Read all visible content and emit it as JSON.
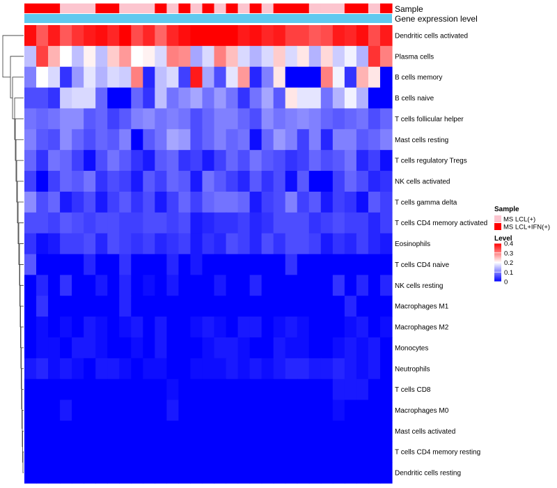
{
  "chart_data": {
    "type": "heatmap",
    "title": "",
    "annotation_tracks": [
      "Sample",
      "Gene expression level"
    ],
    "samples": {
      "groups": [
        "MS LCL(+)",
        "MS LCL+IFN(+)"
      ],
      "group_colors": {
        "MS LCL(+)": "#fcc5cf",
        "MS LCL+IFN(+)": "#ff0000"
      },
      "assignment": [
        1,
        1,
        1,
        0,
        0,
        0,
        1,
        1,
        0,
        0,
        0,
        1,
        0,
        1,
        0,
        1,
        0,
        1,
        0,
        1,
        0,
        1,
        1,
        1,
        0,
        0,
        0,
        1,
        1,
        0,
        1
      ]
    },
    "expression_track_color": "#5fc9ef",
    "rows": [
      "Dendritic cells activated",
      "Plasma cells",
      "B cells memory",
      "B cells naive",
      "T cells follicular helper",
      "Mast cells resting",
      "T cells regulatory  Tregs",
      "NK cells activated",
      "T cells gamma delta",
      "T cells CD4 memory activated",
      "Eosinophils",
      "T cells CD4 naive",
      "NK cells resting",
      "Macrophages M1",
      "Macrophages M2",
      "Monocytes",
      "Neutrophils",
      "T cells CD8",
      "Macrophages M0",
      "Mast cells activated",
      "T cells CD4 memory resting",
      "Dendritic cells resting"
    ],
    "values": [
      [
        0.39,
        0.33,
        0.38,
        0.33,
        0.36,
        0.38,
        0.39,
        0.37,
        0.4,
        0.34,
        0.37,
        0.32,
        0.37,
        0.39,
        0.4,
        0.4,
        0.4,
        0.4,
        0.38,
        0.39,
        0.37,
        0.38,
        0.35,
        0.35,
        0.33,
        0.34,
        0.38,
        0.37,
        0.39,
        0.34,
        0.38
      ],
      [
        0.15,
        0.35,
        0.26,
        0.2,
        0.15,
        0.21,
        0.15,
        0.24,
        0.28,
        0.2,
        0.21,
        0.17,
        0.3,
        0.29,
        0.13,
        0.17,
        0.3,
        0.25,
        0.17,
        0.14,
        0.17,
        0.24,
        0.17,
        0.22,
        0.14,
        0.23,
        0.16,
        0.19,
        0.14,
        0.36,
        0.3
      ],
      [
        0.1,
        0.2,
        0.17,
        0.04,
        0.12,
        0.18,
        0.14,
        0.17,
        0.16,
        0.3,
        0.03,
        0.15,
        0.17,
        0.05,
        0.38,
        0.13,
        0.06,
        0.18,
        0.28,
        0.03,
        0.1,
        0.22,
        0.0,
        0.0,
        0.0,
        0.3,
        0.19,
        0.04,
        0.26,
        0.22,
        0.0
      ],
      [
        0.06,
        0.06,
        0.04,
        0.16,
        0.17,
        0.17,
        0.08,
        0.0,
        0.0,
        0.08,
        0.04,
        0.15,
        0.09,
        0.11,
        0.13,
        0.09,
        0.12,
        0.09,
        0.04,
        0.09,
        0.13,
        0.07,
        0.22,
        0.18,
        0.18,
        0.09,
        0.14,
        0.19,
        0.14,
        0.0,
        0.0
      ],
      [
        0.09,
        0.08,
        0.09,
        0.11,
        0.11,
        0.07,
        0.08,
        0.05,
        0.07,
        0.1,
        0.11,
        0.09,
        0.1,
        0.09,
        0.06,
        0.08,
        0.1,
        0.1,
        0.08,
        0.06,
        0.11,
        0.09,
        0.1,
        0.11,
        0.1,
        0.08,
        0.07,
        0.08,
        0.09,
        0.06,
        0.08
      ],
      [
        0.1,
        0.07,
        0.06,
        0.11,
        0.08,
        0.06,
        0.08,
        0.07,
        0.1,
        0.0,
        0.07,
        0.09,
        0.13,
        0.12,
        0.06,
        0.08,
        0.1,
        0.08,
        0.09,
        0.01,
        0.08,
        0.12,
        0.1,
        0.05,
        0.1,
        0.03,
        0.1,
        0.1,
        0.07,
        0.08,
        0.1
      ],
      [
        0.08,
        0.04,
        0.09,
        0.08,
        0.05,
        0.01,
        0.06,
        0.09,
        0.07,
        0.04,
        0.02,
        0.07,
        0.08,
        0.04,
        0.05,
        0.02,
        0.05,
        0.08,
        0.06,
        0.09,
        0.07,
        0.06,
        0.04,
        0.05,
        0.08,
        0.06,
        0.07,
        0.09,
        0.03,
        0.05,
        0.01
      ],
      [
        0.05,
        0.0,
        0.05,
        0.08,
        0.07,
        0.09,
        0.04,
        0.06,
        0.05,
        0.02,
        0.07,
        0.05,
        0.08,
        0.07,
        0.02,
        0.09,
        0.07,
        0.05,
        0.03,
        0.07,
        0.04,
        0.06,
        0.01,
        0.07,
        0.0,
        0.0,
        0.05,
        0.08,
        0.06,
        0.03,
        0.04
      ],
      [
        0.11,
        0.06,
        0.08,
        0.02,
        0.04,
        0.06,
        0.02,
        0.05,
        0.07,
        0.04,
        0.06,
        0.02,
        0.05,
        0.08,
        0.05,
        0.08,
        0.09,
        0.09,
        0.08,
        0.02,
        0.05,
        0.06,
        0.1,
        0.05,
        0.07,
        0.02,
        0.05,
        0.04,
        0.01,
        0.07,
        0.05
      ],
      [
        0.06,
        0.06,
        0.05,
        0.07,
        0.06,
        0.05,
        0.06,
        0.06,
        0.05,
        0.05,
        0.06,
        0.06,
        0.05,
        0.06,
        0.02,
        0.03,
        0.04,
        0.04,
        0.05,
        0.03,
        0.04,
        0.06,
        0.06,
        0.06,
        0.04,
        0.05,
        0.06,
        0.05,
        0.05,
        0.03,
        0.05
      ],
      [
        0.04,
        0.01,
        0.02,
        0.05,
        0.05,
        0.06,
        0.03,
        0.06,
        0.05,
        0.04,
        0.05,
        0.03,
        0.04,
        0.05,
        0.02,
        0.04,
        0.03,
        0.06,
        0.05,
        0.03,
        0.06,
        0.04,
        0.06,
        0.06,
        0.05,
        0.02,
        0.04,
        0.03,
        0.05,
        0.03,
        0.02
      ],
      [
        0.07,
        0.0,
        0.0,
        0.0,
        0.0,
        0.03,
        0.0,
        0.0,
        0.04,
        0.0,
        0.0,
        0.0,
        0.03,
        0.0,
        0.02,
        0.0,
        0.0,
        0.0,
        0.0,
        0.0,
        0.0,
        0.0,
        0.04,
        0.0,
        0.0,
        0.0,
        0.0,
        0.0,
        0.0,
        0.0,
        0.0
      ],
      [
        0.0,
        0.03,
        0.0,
        0.04,
        0.0,
        0.0,
        0.02,
        0.0,
        0.03,
        0.0,
        0.01,
        0.0,
        0.02,
        0.0,
        0.0,
        0.0,
        0.02,
        0.0,
        0.0,
        0.03,
        0.0,
        0.0,
        0.0,
        0.0,
        0.0,
        0.0,
        0.04,
        0.0,
        0.03,
        0.0,
        0.03
      ],
      [
        0.0,
        0.04,
        0.0,
        0.0,
        0.0,
        0.0,
        0.0,
        0.0,
        0.03,
        0.0,
        0.0,
        0.0,
        0.0,
        0.0,
        0.0,
        0.0,
        0.0,
        0.0,
        0.0,
        0.0,
        0.0,
        0.0,
        0.0,
        0.0,
        0.0,
        0.0,
        0.0,
        0.03,
        0.0,
        0.0,
        0.0
      ],
      [
        0.0,
        0.01,
        0.0,
        0.01,
        0.0,
        0.02,
        0.01,
        0.0,
        0.01,
        0.02,
        0.0,
        0.02,
        0.0,
        0.0,
        0.01,
        0.02,
        0.01,
        0.0,
        0.02,
        0.02,
        0.0,
        0.01,
        0.02,
        0.01,
        0.0,
        0.0,
        0.0,
        0.01,
        0.02,
        0.0,
        0.01
      ],
      [
        0.0,
        0.01,
        0.01,
        0.0,
        0.02,
        0.02,
        0.01,
        0.0,
        0.0,
        0.01,
        0.0,
        0.02,
        0.0,
        0.0,
        0.0,
        0.01,
        0.02,
        0.02,
        0.01,
        0.0,
        0.0,
        0.02,
        0.01,
        0.01,
        0.0,
        0.0,
        0.01,
        0.02,
        0.01,
        0.02,
        0.0
      ],
      [
        0.02,
        0.03,
        0.01,
        0.02,
        0.01,
        0.0,
        0.02,
        0.02,
        0.01,
        0.0,
        0.01,
        0.01,
        0.0,
        0.0,
        0.01,
        0.01,
        0.01,
        0.02,
        0.01,
        0.02,
        0.01,
        0.02,
        0.03,
        0.03,
        0.02,
        0.02,
        0.03,
        0.02,
        0.01,
        0.02,
        0.0
      ],
      [
        0.0,
        0.0,
        0.0,
        0.0,
        0.0,
        0.0,
        0.0,
        0.0,
        0.0,
        0.0,
        0.0,
        0.0,
        0.01,
        0.0,
        0.0,
        0.0,
        0.0,
        0.0,
        0.0,
        0.0,
        0.0,
        0.0,
        0.0,
        0.0,
        0.0,
        0.0,
        0.02,
        0.02,
        0.02,
        0.0,
        0.0
      ],
      [
        0.0,
        0.0,
        0.0,
        0.02,
        0.0,
        0.0,
        0.0,
        0.0,
        0.0,
        0.0,
        0.0,
        0.0,
        0.02,
        0.0,
        0.0,
        0.0,
        0.0,
        0.0,
        0.0,
        0.0,
        0.0,
        0.0,
        0.0,
        0.0,
        0.0,
        0.0,
        0.01,
        0.0,
        0.0,
        0.0,
        0.0
      ],
      [
        0.0,
        0.0,
        0.0,
        0.0,
        0.0,
        0.0,
        0.0,
        0.0,
        0.0,
        0.0,
        0.0,
        0.0,
        0.0,
        0.0,
        0.0,
        0.0,
        0.0,
        0.0,
        0.0,
        0.0,
        0.0,
        0.0,
        0.0,
        0.0,
        0.0,
        0.0,
        0.0,
        0.0,
        0.0,
        0.0,
        0.0
      ],
      [
        0.0,
        0.0,
        0.0,
        0.0,
        0.0,
        0.0,
        0.0,
        0.0,
        0.0,
        0.0,
        0.0,
        0.0,
        0.0,
        0.0,
        0.0,
        0.0,
        0.0,
        0.0,
        0.0,
        0.0,
        0.0,
        0.0,
        0.0,
        0.0,
        0.0,
        0.0,
        0.0,
        0.0,
        0.0,
        0.0,
        0.0
      ],
      [
        0.0,
        0.0,
        0.0,
        0.0,
        0.0,
        0.0,
        0.0,
        0.0,
        0.0,
        0.0,
        0.0,
        0.0,
        0.0,
        0.0,
        0.0,
        0.0,
        0.0,
        0.0,
        0.0,
        0.0,
        0.0,
        0.0,
        0.0,
        0.0,
        0.0,
        0.0,
        0.0,
        0.0,
        0.0,
        0.0,
        0.0
      ]
    ],
    "color_scale": {
      "min": 0,
      "mid": 0.2,
      "max": 0.4,
      "low": "#0000ff",
      "midColor": "#ffffff",
      "high": "#ff0000"
    },
    "legend": {
      "sample_title": "Sample",
      "level_title": "Level",
      "level_ticks": [
        "0.4",
        "0.3",
        "0.2",
        "0.1",
        "0"
      ],
      "level_tick_values": [
        0.4,
        0.3,
        0.2,
        0.1,
        0
      ],
      "placement": "right"
    }
  }
}
